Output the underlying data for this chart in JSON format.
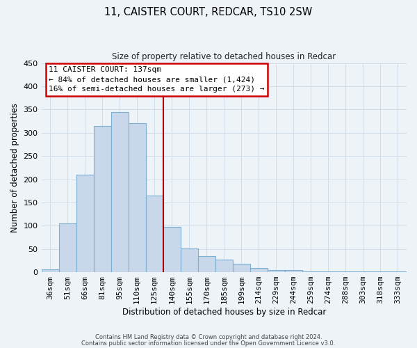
{
  "title": "11, CAISTER COURT, REDCAR, TS10 2SW",
  "subtitle": "Size of property relative to detached houses in Redcar",
  "xlabel": "Distribution of detached houses by size in Redcar",
  "ylabel": "Number of detached properties",
  "bar_labels": [
    "36sqm",
    "51sqm",
    "66sqm",
    "81sqm",
    "95sqm",
    "110sqm",
    "125sqm",
    "140sqm",
    "155sqm",
    "170sqm",
    "185sqm",
    "199sqm",
    "214sqm",
    "229sqm",
    "244sqm",
    "259sqm",
    "274sqm",
    "288sqm",
    "303sqm",
    "318sqm",
    "333sqm"
  ],
  "bar_values": [
    6,
    105,
    210,
    315,
    345,
    320,
    165,
    97,
    51,
    35,
    27,
    18,
    9,
    4,
    4,
    2,
    1,
    1,
    1,
    1,
    1
  ],
  "bar_color": "#c8d8ea",
  "bar_edge_color": "#7bafd4",
  "vline_color": "#aa0000",
  "ylim": [
    0,
    450
  ],
  "yticks": [
    0,
    50,
    100,
    150,
    200,
    250,
    300,
    350,
    400,
    450
  ],
  "annotation_title": "11 CAISTER COURT: 137sqm",
  "annotation_line1": "← 84% of detached houses are smaller (1,424)",
  "annotation_line2": "16% of semi-detached houses are larger (273) →",
  "annotation_box_color": "#cc0000",
  "bg_color": "#eef3f8",
  "grid_color": "#d0dde8",
  "footer1": "Contains HM Land Registry data © Crown copyright and database right 2024.",
  "footer2": "Contains public sector information licensed under the Open Government Licence v3.0."
}
